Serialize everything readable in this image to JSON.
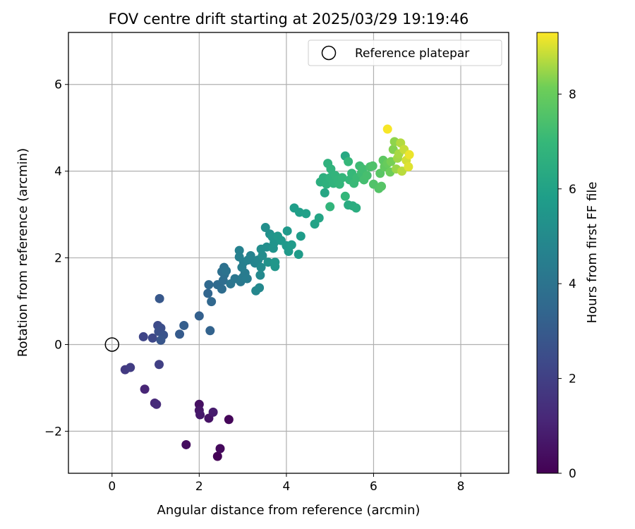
{
  "chart_data": {
    "type": "scatter",
    "title": "FOV centre drift starting at 2025/03/29 19:19:46",
    "xlabel": "Angular distance from reference (arcmin)",
    "ylabel": "Rotation from reference (arcmin)",
    "xlim": [
      -1.0,
      9.1
    ],
    "ylim": [
      -2.97,
      7.2
    ],
    "xticks": [
      "0",
      "2",
      "4",
      "6",
      "8"
    ],
    "yticks": [
      "−2",
      "0",
      "2",
      "4",
      "6"
    ],
    "grid": true,
    "legend": {
      "position": "top-right",
      "entries": [
        "Reference platepar"
      ]
    },
    "reference_point": {
      "name": "Reference platepar",
      "x": 0,
      "y": 0,
      "marker": "open-circle"
    },
    "colorbar": {
      "label": "Hours from first FF file",
      "range": [
        0,
        9.3
      ],
      "ticks": [
        "0",
        "2",
        "4",
        "6",
        "8"
      ],
      "colormap": "viridis"
    },
    "points": [
      {
        "x": 2.42,
        "y": -2.58,
        "c": 0.05
      },
      {
        "x": 2.68,
        "y": -1.73,
        "c": 0.15
      },
      {
        "x": 2.48,
        "y": -2.4,
        "c": 0.25
      },
      {
        "x": 1.7,
        "y": -2.31,
        "c": 0.35
      },
      {
        "x": 2.0,
        "y": -1.38,
        "c": 0.45
      },
      {
        "x": 2.22,
        "y": -1.7,
        "c": 0.55
      },
      {
        "x": 2.0,
        "y": -1.52,
        "c": 0.62
      },
      {
        "x": 2.02,
        "y": -1.62,
        "c": 0.7
      },
      {
        "x": 2.32,
        "y": -1.56,
        "c": 0.8
      },
      {
        "x": 0.75,
        "y": -1.03,
        "c": 1.1
      },
      {
        "x": 0.98,
        "y": -1.35,
        "c": 1.2
      },
      {
        "x": 1.02,
        "y": -1.38,
        "c": 1.3
      },
      {
        "x": 0.3,
        "y": -0.58,
        "c": 1.8
      },
      {
        "x": 0.42,
        "y": -0.53,
        "c": 1.9
      },
      {
        "x": 1.08,
        "y": -0.46,
        "c": 2.0
      },
      {
        "x": 0.72,
        "y": 0.18,
        "c": 2.2
      },
      {
        "x": 0.93,
        "y": 0.15,
        "c": 2.3
      },
      {
        "x": 1.05,
        "y": 0.44,
        "c": 2.4
      },
      {
        "x": 1.12,
        "y": 0.38,
        "c": 2.5
      },
      {
        "x": 1.07,
        "y": 0.3,
        "c": 2.6
      },
      {
        "x": 1.18,
        "y": 0.22,
        "c": 2.7
      },
      {
        "x": 1.12,
        "y": 0.1,
        "c": 2.8
      },
      {
        "x": 1.09,
        "y": 1.06,
        "c": 2.9
      },
      {
        "x": 1.55,
        "y": 0.24,
        "c": 3.0
      },
      {
        "x": 1.65,
        "y": 0.44,
        "c": 3.1
      },
      {
        "x": 2.0,
        "y": 0.66,
        "c": 3.2
      },
      {
        "x": 2.25,
        "y": 0.32,
        "c": 3.3
      },
      {
        "x": 2.2,
        "y": 1.18,
        "c": 3.4
      },
      {
        "x": 2.28,
        "y": 0.99,
        "c": 3.5
      },
      {
        "x": 2.22,
        "y": 1.38,
        "c": 3.55
      },
      {
        "x": 2.42,
        "y": 1.38,
        "c": 3.6
      },
      {
        "x": 2.52,
        "y": 1.28,
        "c": 3.7
      },
      {
        "x": 2.55,
        "y": 1.48,
        "c": 3.75
      },
      {
        "x": 2.58,
        "y": 1.62,
        "c": 3.8
      },
      {
        "x": 2.52,
        "y": 1.68,
        "c": 3.85
      },
      {
        "x": 2.57,
        "y": 1.78,
        "c": 3.9
      },
      {
        "x": 2.62,
        "y": 1.7,
        "c": 4.0
      },
      {
        "x": 2.72,
        "y": 1.4,
        "c": 4.05
      },
      {
        "x": 2.82,
        "y": 1.52,
        "c": 4.1
      },
      {
        "x": 2.95,
        "y": 1.45,
        "c": 4.2
      },
      {
        "x": 3.0,
        "y": 1.55,
        "c": 4.3
      },
      {
        "x": 3.05,
        "y": 1.65,
        "c": 4.35
      },
      {
        "x": 3.1,
        "y": 1.52,
        "c": 4.4
      },
      {
        "x": 2.98,
        "y": 1.78,
        "c": 4.45
      },
      {
        "x": 3.02,
        "y": 1.9,
        "c": 4.5
      },
      {
        "x": 2.92,
        "y": 2.02,
        "c": 4.55
      },
      {
        "x": 2.92,
        "y": 2.17,
        "c": 4.6
      },
      {
        "x": 3.12,
        "y": 1.95,
        "c": 4.65
      },
      {
        "x": 3.18,
        "y": 2.05,
        "c": 4.7
      },
      {
        "x": 3.28,
        "y": 1.88,
        "c": 4.75
      },
      {
        "x": 3.35,
        "y": 1.95,
        "c": 4.8
      },
      {
        "x": 3.3,
        "y": 1.24,
        "c": 4.85
      },
      {
        "x": 3.38,
        "y": 1.31,
        "c": 4.9
      },
      {
        "x": 3.4,
        "y": 1.6,
        "c": 4.95
      },
      {
        "x": 3.42,
        "y": 1.78,
        "c": 5.0
      },
      {
        "x": 3.45,
        "y": 2.05,
        "c": 5.05
      },
      {
        "x": 3.42,
        "y": 2.2,
        "c": 5.1
      },
      {
        "x": 3.55,
        "y": 2.25,
        "c": 5.15
      },
      {
        "x": 3.52,
        "y": 2.7,
        "c": 5.2
      },
      {
        "x": 3.62,
        "y": 2.55,
        "c": 5.25
      },
      {
        "x": 3.58,
        "y": 1.9,
        "c": 5.3
      },
      {
        "x": 3.7,
        "y": 2.22,
        "c": 5.35
      },
      {
        "x": 3.72,
        "y": 2.35,
        "c": 5.4
      },
      {
        "x": 3.68,
        "y": 2.48,
        "c": 5.45
      },
      {
        "x": 3.74,
        "y": 1.8,
        "c": 5.5
      },
      {
        "x": 3.74,
        "y": 1.9,
        "c": 5.52
      },
      {
        "x": 3.8,
        "y": 2.5,
        "c": 5.55
      },
      {
        "x": 3.88,
        "y": 2.4,
        "c": 5.58
      },
      {
        "x": 4.0,
        "y": 2.28,
        "c": 5.6
      },
      {
        "x": 4.02,
        "y": 2.62,
        "c": 5.62
      },
      {
        "x": 4.05,
        "y": 2.15,
        "c": 5.65
      },
      {
        "x": 4.12,
        "y": 2.3,
        "c": 5.68
      },
      {
        "x": 4.28,
        "y": 2.08,
        "c": 5.7
      },
      {
        "x": 4.33,
        "y": 2.5,
        "c": 5.75
      },
      {
        "x": 4.18,
        "y": 3.15,
        "c": 5.8
      },
      {
        "x": 4.3,
        "y": 3.05,
        "c": 5.85
      },
      {
        "x": 4.45,
        "y": 3.02,
        "c": 5.9
      },
      {
        "x": 4.65,
        "y": 2.78,
        "c": 6.0
      },
      {
        "x": 4.75,
        "y": 2.92,
        "c": 6.1
      },
      {
        "x": 4.88,
        "y": 3.5,
        "c": 6.2
      },
      {
        "x": 5.35,
        "y": 4.35,
        "c": 6.3
      },
      {
        "x": 5.42,
        "y": 3.22,
        "c": 6.4
      },
      {
        "x": 5.52,
        "y": 3.2,
        "c": 6.45
      },
      {
        "x": 5.6,
        "y": 3.15,
        "c": 6.5
      },
      {
        "x": 4.78,
        "y": 3.75,
        "c": 6.55
      },
      {
        "x": 4.85,
        "y": 3.85,
        "c": 6.6
      },
      {
        "x": 4.92,
        "y": 3.7,
        "c": 6.65
      },
      {
        "x": 4.95,
        "y": 4.18,
        "c": 6.7
      },
      {
        "x": 5.0,
        "y": 3.85,
        "c": 6.72
      },
      {
        "x": 5.02,
        "y": 4.05,
        "c": 6.75
      },
      {
        "x": 5.08,
        "y": 3.72,
        "c": 6.78
      },
      {
        "x": 5.12,
        "y": 3.9,
        "c": 6.8
      },
      {
        "x": 5.0,
        "y": 3.18,
        "c": 6.82
      },
      {
        "x": 5.18,
        "y": 3.8,
        "c": 6.85
      },
      {
        "x": 5.22,
        "y": 3.7,
        "c": 6.88
      },
      {
        "x": 5.28,
        "y": 3.85,
        "c": 6.9
      },
      {
        "x": 5.35,
        "y": 3.42,
        "c": 6.92
      },
      {
        "x": 5.42,
        "y": 4.22,
        "c": 6.95
      },
      {
        "x": 5.45,
        "y": 3.8,
        "c": 6.98
      },
      {
        "x": 5.5,
        "y": 3.95,
        "c": 7.0
      },
      {
        "x": 5.55,
        "y": 3.72,
        "c": 7.05
      },
      {
        "x": 5.62,
        "y": 3.85,
        "c": 7.1
      },
      {
        "x": 5.68,
        "y": 4.12,
        "c": 7.15
      },
      {
        "x": 5.72,
        "y": 3.95,
        "c": 7.2
      },
      {
        "x": 5.75,
        "y": 4.05,
        "c": 7.25
      },
      {
        "x": 5.78,
        "y": 3.8,
        "c": 7.3
      },
      {
        "x": 5.85,
        "y": 3.9,
        "c": 7.35
      },
      {
        "x": 5.92,
        "y": 4.1,
        "c": 7.4
      },
      {
        "x": 5.98,
        "y": 4.12,
        "c": 7.5
      },
      {
        "x": 6.0,
        "y": 3.7,
        "c": 7.55
      },
      {
        "x": 6.12,
        "y": 3.6,
        "c": 7.6
      },
      {
        "x": 6.18,
        "y": 3.65,
        "c": 7.65
      },
      {
        "x": 6.15,
        "y": 3.95,
        "c": 7.7
      },
      {
        "x": 6.22,
        "y": 4.25,
        "c": 7.8
      },
      {
        "x": 6.25,
        "y": 4.1,
        "c": 7.9
      },
      {
        "x": 6.32,
        "y": 4.18,
        "c": 8.0
      },
      {
        "x": 6.38,
        "y": 3.98,
        "c": 8.1
      },
      {
        "x": 6.4,
        "y": 4.22,
        "c": 8.2
      },
      {
        "x": 6.45,
        "y": 4.5,
        "c": 8.3
      },
      {
        "x": 6.48,
        "y": 4.68,
        "c": 8.4
      },
      {
        "x": 6.52,
        "y": 4.05,
        "c": 8.5
      },
      {
        "x": 6.55,
        "y": 4.3,
        "c": 8.55
      },
      {
        "x": 6.58,
        "y": 4.4,
        "c": 8.6
      },
      {
        "x": 6.62,
        "y": 4.65,
        "c": 8.7
      },
      {
        "x": 6.65,
        "y": 4.0,
        "c": 8.75
      },
      {
        "x": 6.7,
        "y": 4.5,
        "c": 8.85
      },
      {
        "x": 6.75,
        "y": 4.25,
        "c": 8.95
      },
      {
        "x": 6.8,
        "y": 4.1,
        "c": 9.05
      },
      {
        "x": 6.82,
        "y": 4.38,
        "c": 9.15
      },
      {
        "x": 6.32,
        "y": 4.97,
        "c": 9.25
      }
    ]
  }
}
